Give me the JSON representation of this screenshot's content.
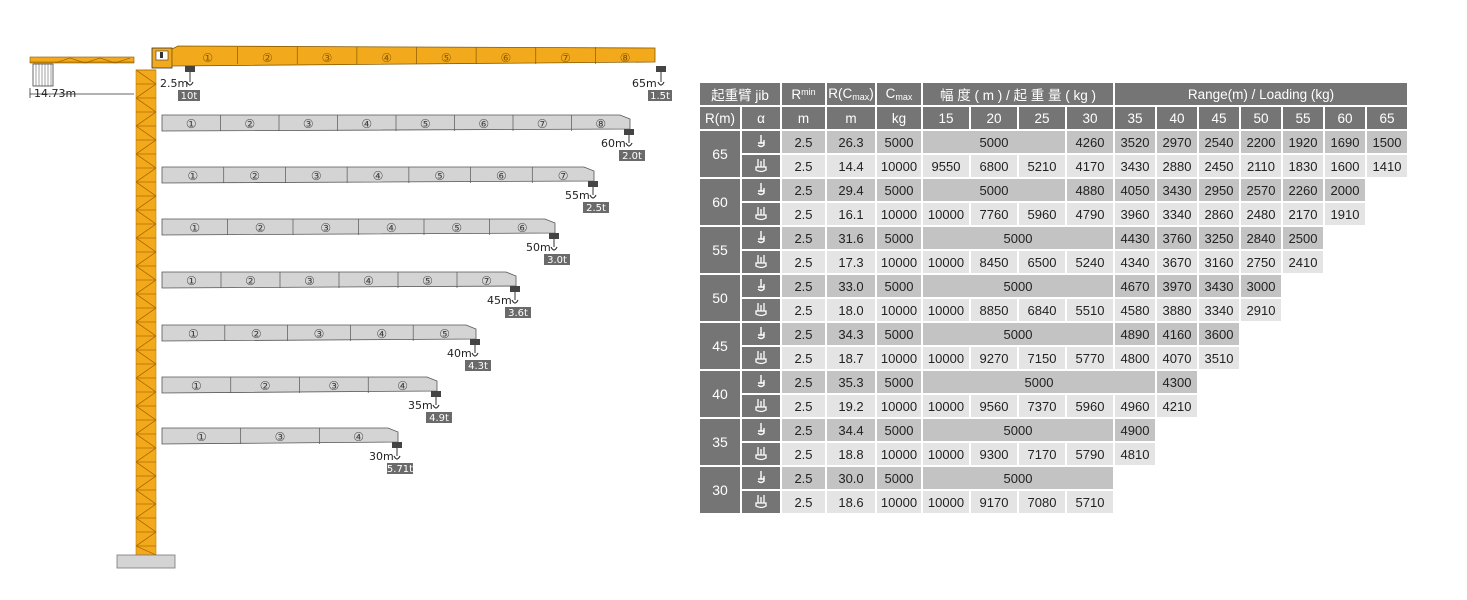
{
  "diagram": {
    "counterjib_length": "14.73m",
    "top_jib": {
      "sections": [
        "①",
        "②",
        "③",
        "④",
        "⑤",
        "⑥",
        "⑦",
        "⑧"
      ],
      "min_radius": "2.5m",
      "min_load": "10t",
      "tip_radius": "65m",
      "tip_load": "1.5t"
    },
    "jibs": [
      {
        "sections": [
          "①",
          "②",
          "③",
          "④",
          "⑤",
          "⑥",
          "⑦",
          "⑧"
        ],
        "radius": "60m",
        "load": "2.0t"
      },
      {
        "sections": [
          "①",
          "②",
          "③",
          "④",
          "⑤",
          "⑥",
          "⑦"
        ],
        "radius": "55m",
        "load": "2.5t"
      },
      {
        "sections": [
          "①",
          "②",
          "③",
          "④",
          "⑤",
          "⑥"
        ],
        "radius": "50m",
        "load": "3.0t"
      },
      {
        "sections": [
          "①",
          "②",
          "③",
          "④",
          "⑤",
          "⑦"
        ],
        "radius": "45m",
        "load": "3.6t"
      },
      {
        "sections": [
          "①",
          "②",
          "③",
          "④",
          "⑤"
        ],
        "radius": "40m",
        "load": "4.3t"
      },
      {
        "sections": [
          "①",
          "②",
          "③",
          "④"
        ],
        "radius": "35m",
        "load": "4.9t"
      },
      {
        "sections": [
          "①",
          "③",
          "④"
        ],
        "radius": "30m",
        "load": "5.71t"
      }
    ]
  },
  "table": {
    "header": {
      "jib_label": "起重臂 jib",
      "rmin_label": "R",
      "rmin_sup": "min",
      "rc_label_pre": "R(C",
      "rc_sub": "max",
      "rc_label_post": ")",
      "cmax_label": "C",
      "cmax_sub": "max",
      "range_cn": "幅 度 ( m ) / 起 重 量 ( kg )",
      "range_en": "Range(m) / Loading (kg)",
      "r_label": "R(m)",
      "alpha_label": "α",
      "m1": "m",
      "m2": "m",
      "kg": "kg",
      "ranges": [
        "15",
        "20",
        "25",
        "30",
        "35",
        "40",
        "45",
        "50",
        "55",
        "60",
        "65"
      ]
    },
    "groups": [
      {
        "radius": "65",
        "rows": [
          {
            "rmin": "2.5",
            "rc": "26.3",
            "cmax": "5000",
            "vals": [
              "",
              "5000",
              "",
              "4260",
              "3520",
              "2970",
              "2540",
              "2200",
              "1920",
              "1690",
              "1500"
            ]
          },
          {
            "rmin": "2.5",
            "rc": "14.4",
            "cmax": "10000",
            "vals": [
              "9550",
              "6800",
              "5210",
              "4170",
              "3430",
              "2880",
              "2450",
              "2110",
              "1830",
              "1600",
              "1410"
            ]
          }
        ]
      },
      {
        "radius": "60",
        "rows": [
          {
            "rmin": "2.5",
            "rc": "29.4",
            "cmax": "5000",
            "vals": [
              "",
              "5000",
              "",
              "4880",
              "4050",
              "3430",
              "2950",
              "2570",
              "2260",
              "2000"
            ]
          },
          {
            "rmin": "2.5",
            "rc": "16.1",
            "cmax": "10000",
            "vals": [
              "10000",
              "7760",
              "5960",
              "4790",
              "3960",
              "3340",
              "2860",
              "2480",
              "2170",
              "1910"
            ]
          }
        ]
      },
      {
        "radius": "55",
        "rows": [
          {
            "rmin": "2.5",
            "rc": "31.6",
            "cmax": "5000",
            "vals": [
              "",
              "5000",
              "",
              "",
              "4430",
              "3760",
              "3250",
              "2840",
              "2500"
            ]
          },
          {
            "rmin": "2.5",
            "rc": "17.3",
            "cmax": "10000",
            "vals": [
              "10000",
              "8450",
              "6500",
              "5240",
              "4340",
              "3670",
              "3160",
              "2750",
              "2410"
            ]
          }
        ]
      },
      {
        "radius": "50",
        "rows": [
          {
            "rmin": "2.5",
            "rc": "33.0",
            "cmax": "5000",
            "vals": [
              "",
              "5000",
              "",
              "",
              "4670",
              "3970",
              "3430",
              "3000"
            ]
          },
          {
            "rmin": "2.5",
            "rc": "18.0",
            "cmax": "10000",
            "vals": [
              "10000",
              "8850",
              "6840",
              "5510",
              "4580",
              "3880",
              "3340",
              "2910"
            ]
          }
        ]
      },
      {
        "radius": "45",
        "rows": [
          {
            "rmin": "2.5",
            "rc": "34.3",
            "cmax": "5000",
            "vals": [
              "",
              "5000",
              "",
              "",
              "4890",
              "4160",
              "3600"
            ]
          },
          {
            "rmin": "2.5",
            "rc": "18.7",
            "cmax": "10000",
            "vals": [
              "10000",
              "9270",
              "7150",
              "5770",
              "4800",
              "4070",
              "3510"
            ]
          }
        ]
      },
      {
        "radius": "40",
        "rows": [
          {
            "rmin": "2.5",
            "rc": "35.3",
            "cmax": "5000",
            "vals": [
              "",
              "5000",
              "",
              "",
              "",
              "4300"
            ]
          },
          {
            "rmin": "2.5",
            "rc": "19.2",
            "cmax": "10000",
            "vals": [
              "10000",
              "9560",
              "7370",
              "5960",
              "4960",
              "4210"
            ]
          }
        ]
      },
      {
        "radius": "35",
        "rows": [
          {
            "rmin": "2.5",
            "rc": "34.4",
            "cmax": "5000",
            "vals": [
              "",
              "5000",
              "",
              "",
              "4900"
            ]
          },
          {
            "rmin": "2.5",
            "rc": "18.8",
            "cmax": "10000",
            "vals": [
              "10000",
              "9300",
              "7170",
              "5790",
              "4810"
            ]
          }
        ]
      },
      {
        "radius": "30",
        "rows": [
          {
            "rmin": "2.5",
            "rc": "30.0",
            "cmax": "5000",
            "vals": [
              "",
              "5000",
              "",
              ""
            ]
          },
          {
            "rmin": "2.5",
            "rc": "18.6",
            "cmax": "10000",
            "vals": [
              "10000",
              "9170",
              "7080",
              "5710"
            ]
          }
        ]
      }
    ]
  },
  "colors": {
    "crane": "#f2a91c",
    "jib_gray": "#d4d4d4",
    "header_gray": "#757575",
    "cell_dark": "#c3c3c3",
    "cell_light": "#e4e4e4"
  }
}
